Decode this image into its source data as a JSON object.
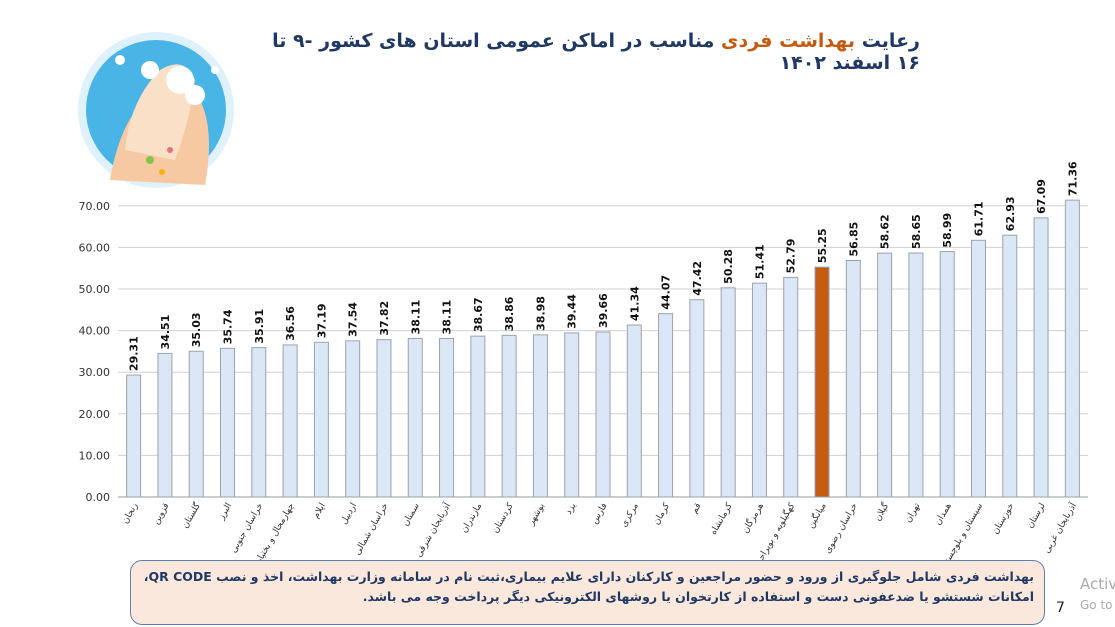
{
  "chart_data": {
    "type": "bar",
    "title": [
      "رعایت",
      "بهداشت فردی",
      "مناسب در اماکن عمومی استان های کشور -۹ تا ۱۶ اسفند ۱۴۰۲"
    ],
    "categories": [
      "زنجان",
      "قزوین",
      "گلستان",
      "البرز",
      "خراسان جنوبی",
      "چهارمحال و بختیاری",
      "ایلام",
      "اردبیل",
      "خراسان شمالی",
      "سمنان",
      "آذربایجان شرقی",
      "مازندران",
      "کردستان",
      "بوشهر",
      "یزد",
      "فارس",
      "مرکزی",
      "کرمان",
      "قم",
      "کرمانشاه",
      "هرمزگان",
      "کهگیلویه و بویراحمد",
      "میانگین",
      "خراسان رضوی",
      "گیلان",
      "تهران",
      "همدان",
      "سیستان و بلوچستان",
      "خوزستان",
      "لرستان",
      "آذربایجان غربی"
    ],
    "values": [
      29.31,
      34.51,
      35.03,
      35.74,
      35.91,
      36.56,
      37.19,
      37.54,
      37.82,
      38.11,
      38.11,
      38.67,
      38.86,
      38.98,
      39.44,
      39.66,
      41.34,
      44.07,
      47.42,
      50.28,
      51.41,
      52.79,
      55.25,
      56.85,
      58.62,
      58.65,
      58.99,
      61.71,
      62.93,
      67.09,
      71.36
    ],
    "colors": [
      "#dbe7f6",
      "#dbe7f6",
      "#dbe7f6",
      "#dbe7f6",
      "#dbe7f6",
      "#dbe7f6",
      "#dbe7f6",
      "#dbe7f6",
      "#dbe7f6",
      "#dbe7f6",
      "#dbe7f6",
      "#dbe7f6",
      "#dbe7f6",
      "#dbe7f6",
      "#dbe7f6",
      "#dbe7f6",
      "#dbe7f6",
      "#dbe7f6",
      "#dbe7f6",
      "#dbe7f6",
      "#dbe7f6",
      "#dbe7f6",
      "#c55a11",
      "#dbe7f6",
      "#dbe7f6",
      "#dbe7f6",
      "#dbe7f6",
      "#dbe7f6",
      "#dbe7f6",
      "#dbe7f6",
      "#dbe7f6"
    ],
    "ylim": [
      0,
      75
    ],
    "yticks": [
      {
        "value": 0,
        "label": "0.00"
      },
      {
        "value": 10,
        "label": "10.00"
      },
      {
        "value": 20,
        "label": "20.00"
      },
      {
        "value": 30,
        "label": "30.00"
      },
      {
        "value": 40,
        "label": "40.00"
      },
      {
        "value": 50,
        "label": "50.00"
      },
      {
        "value": 60,
        "label": "60.00"
      },
      {
        "value": 70,
        "label": "70.00"
      }
    ],
    "grid": true
  },
  "note": "بهداشت فردی شامل جلوگیری از ورود و حضور مراجعین و کارکنان دارای علایم بیماری،ثبت نام در سامانه وزارت بهداشت، اخذ و نصب QR CODE، امکانات شستشو یا ضدعفونی دست و استفاده از کارتخوان یا روشهای الکترونیکی دیگر پرداخت وجه می باشد.",
  "page_number": "7",
  "watermark": [
    "Activate Windows",
    "Go to Settings to activate Windows."
  ]
}
